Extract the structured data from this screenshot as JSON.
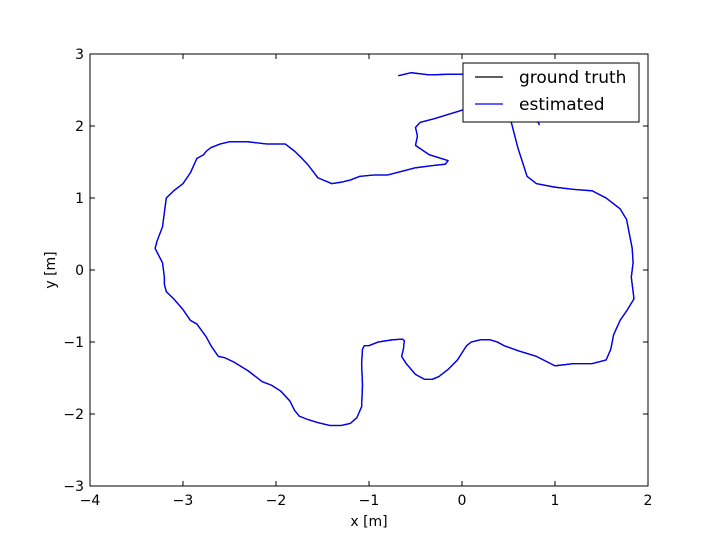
{
  "chart_data": {
    "type": "line",
    "title": "",
    "xlabel": "x [m]",
    "ylabel": "y [m]",
    "xlim": [
      -4,
      2
    ],
    "ylim": [
      -3,
      3
    ],
    "xticks": [
      -4,
      -3,
      -2,
      -1,
      0,
      1,
      2
    ],
    "yticks": [
      -3,
      -2,
      -1,
      0,
      1,
      2,
      3
    ],
    "xtick_labels": [
      "−4",
      "−3",
      "−2",
      "−1",
      "0",
      "1",
      "2"
    ],
    "ytick_labels": [
      "−3",
      "−2",
      "−1",
      "0",
      "1",
      "2",
      "3"
    ],
    "grid": false,
    "legend_position": "top-right",
    "series": [
      {
        "name": "ground truth",
        "color": "#000000",
        "x": [
          -0.68,
          -0.55,
          -0.35,
          -0.12,
          0.05,
          0.15,
          0.25,
          0.35,
          0.45,
          0.5,
          0.48,
          0.52,
          0.6,
          0.7,
          0.8,
          1.0,
          1.2,
          1.4,
          1.55,
          1.7,
          1.77,
          1.8,
          1.83,
          1.84,
          1.83,
          1.82,
          1.85,
          1.78,
          1.7,
          1.63,
          1.6,
          1.55,
          1.4,
          1.2,
          1.0,
          0.8,
          0.6,
          0.45,
          0.38,
          0.3,
          0.2,
          0.1,
          0.05,
          0.0,
          -0.05,
          -0.15,
          -0.25,
          -0.32,
          -0.4,
          -0.5,
          -0.6,
          -0.65,
          -0.63,
          -0.62,
          -0.64,
          -0.75,
          -0.9,
          -1.0,
          -1.05,
          -1.07,
          -1.08,
          -1.07,
          -1.08,
          -1.13,
          -1.2,
          -1.3,
          -1.42,
          -1.55,
          -1.65,
          -1.75,
          -1.8,
          -1.85,
          -1.95,
          -2.05,
          -2.15,
          -2.3,
          -2.45,
          -2.55,
          -2.62,
          -2.7,
          -2.75,
          -2.85,
          -2.92,
          -3.0,
          -3.1,
          -3.18,
          -3.2,
          -3.2,
          -3.22,
          -3.3,
          -3.28,
          -3.22,
          -3.2,
          -3.18,
          -3.1,
          -3.0,
          -2.92,
          -2.85,
          -2.78,
          -2.75,
          -2.7,
          -2.6,
          -2.5,
          -2.3,
          -2.1,
          -1.9,
          -1.8,
          -1.72,
          -1.65,
          -1.55,
          -1.4,
          -1.3,
          -1.2,
          -1.1,
          -0.95,
          -0.8,
          -0.65,
          -0.5,
          -0.32,
          -0.18,
          -0.15,
          -0.35,
          -0.5,
          -0.48,
          -0.5,
          -0.45,
          -0.3,
          -0.05,
          0.1,
          0.25,
          0.35,
          0.45,
          0.55,
          0.65,
          0.75,
          0.82,
          0.83
        ],
        "y": [
          2.7,
          2.74,
          2.71,
          2.72,
          2.72,
          2.75,
          2.78,
          2.8,
          2.76,
          2.6,
          2.4,
          2.1,
          1.7,
          1.3,
          1.2,
          1.15,
          1.12,
          1.1,
          1.0,
          0.85,
          0.7,
          0.5,
          0.3,
          0.1,
          0.0,
          -0.1,
          -0.4,
          -0.55,
          -0.7,
          -0.9,
          -1.1,
          -1.25,
          -1.3,
          -1.3,
          -1.33,
          -1.2,
          -1.12,
          -1.05,
          -1.0,
          -0.97,
          -0.97,
          -1.0,
          -1.05,
          -1.15,
          -1.25,
          -1.38,
          -1.48,
          -1.52,
          -1.52,
          -1.45,
          -1.3,
          -1.2,
          -1.1,
          -0.98,
          -0.96,
          -0.97,
          -1.0,
          -1.05,
          -1.05,
          -1.1,
          -1.3,
          -1.6,
          -1.9,
          -2.05,
          -2.13,
          -2.16,
          -2.16,
          -2.12,
          -2.08,
          -2.03,
          -1.95,
          -1.82,
          -1.68,
          -1.6,
          -1.55,
          -1.4,
          -1.28,
          -1.22,
          -1.2,
          -1.05,
          -0.93,
          -0.75,
          -0.7,
          -0.55,
          -0.4,
          -0.3,
          -0.2,
          -0.1,
          0.1,
          0.3,
          0.4,
          0.6,
          0.8,
          1.0,
          1.1,
          1.2,
          1.35,
          1.55,
          1.6,
          1.65,
          1.7,
          1.75,
          1.78,
          1.78,
          1.75,
          1.75,
          1.65,
          1.55,
          1.45,
          1.28,
          1.2,
          1.22,
          1.25,
          1.3,
          1.32,
          1.32,
          1.37,
          1.42,
          1.45,
          1.47,
          1.52,
          1.6,
          1.73,
          1.86,
          1.98,
          2.05,
          2.1,
          2.2,
          2.26,
          2.26,
          2.22,
          2.18,
          2.12,
          2.1,
          2.08,
          2.05,
          2.02
        ]
      },
      {
        "name": "estimated",
        "color": "#0000ff",
        "x": [
          -0.68,
          -0.55,
          -0.35,
          -0.12,
          0.05,
          0.15,
          0.25,
          0.35,
          0.45,
          0.5,
          0.48,
          0.52,
          0.6,
          0.7,
          0.8,
          1.0,
          1.2,
          1.4,
          1.55,
          1.7,
          1.77,
          1.8,
          1.83,
          1.84,
          1.83,
          1.82,
          1.85,
          1.78,
          1.7,
          1.63,
          1.6,
          1.55,
          1.4,
          1.2,
          1.0,
          0.8,
          0.6,
          0.45,
          0.38,
          0.3,
          0.2,
          0.1,
          0.05,
          0.0,
          -0.05,
          -0.15,
          -0.25,
          -0.32,
          -0.4,
          -0.5,
          -0.6,
          -0.65,
          -0.63,
          -0.62,
          -0.64,
          -0.75,
          -0.9,
          -1.0,
          -1.05,
          -1.07,
          -1.08,
          -1.07,
          -1.08,
          -1.13,
          -1.2,
          -1.3,
          -1.42,
          -1.55,
          -1.65,
          -1.75,
          -1.8,
          -1.85,
          -1.95,
          -2.05,
          -2.15,
          -2.3,
          -2.45,
          -2.55,
          -2.62,
          -2.7,
          -2.75,
          -2.85,
          -2.92,
          -3.0,
          -3.1,
          -3.18,
          -3.2,
          -3.2,
          -3.22,
          -3.3,
          -3.28,
          -3.22,
          -3.2,
          -3.18,
          -3.1,
          -3.0,
          -2.92,
          -2.85,
          -2.78,
          -2.75,
          -2.7,
          -2.6,
          -2.5,
          -2.3,
          -2.1,
          -1.9,
          -1.8,
          -1.72,
          -1.65,
          -1.55,
          -1.4,
          -1.3,
          -1.2,
          -1.1,
          -0.95,
          -0.8,
          -0.65,
          -0.5,
          -0.32,
          -0.18,
          -0.15,
          -0.35,
          -0.5,
          -0.48,
          -0.5,
          -0.45,
          -0.3,
          -0.05,
          0.1,
          0.25,
          0.35,
          0.45,
          0.55,
          0.65,
          0.75,
          0.82,
          0.83
        ],
        "y": [
          2.7,
          2.74,
          2.71,
          2.72,
          2.72,
          2.75,
          2.78,
          2.8,
          2.76,
          2.6,
          2.4,
          2.1,
          1.7,
          1.3,
          1.2,
          1.15,
          1.12,
          1.1,
          1.0,
          0.85,
          0.7,
          0.5,
          0.3,
          0.1,
          0.0,
          -0.1,
          -0.4,
          -0.55,
          -0.7,
          -0.9,
          -1.1,
          -1.25,
          -1.3,
          -1.3,
          -1.33,
          -1.2,
          -1.12,
          -1.05,
          -1.0,
          -0.97,
          -0.97,
          -1.0,
          -1.05,
          -1.15,
          -1.25,
          -1.38,
          -1.48,
          -1.52,
          -1.52,
          -1.45,
          -1.3,
          -1.2,
          -1.1,
          -0.98,
          -0.96,
          -0.97,
          -1.0,
          -1.05,
          -1.05,
          -1.1,
          -1.3,
          -1.6,
          -1.9,
          -2.05,
          -2.13,
          -2.16,
          -2.16,
          -2.12,
          -2.08,
          -2.03,
          -1.95,
          -1.82,
          -1.68,
          -1.6,
          -1.55,
          -1.4,
          -1.28,
          -1.22,
          -1.2,
          -1.05,
          -0.93,
          -0.75,
          -0.7,
          -0.55,
          -0.4,
          -0.3,
          -0.2,
          -0.1,
          0.1,
          0.3,
          0.4,
          0.6,
          0.8,
          1.0,
          1.1,
          1.2,
          1.35,
          1.55,
          1.6,
          1.65,
          1.7,
          1.75,
          1.78,
          1.78,
          1.75,
          1.75,
          1.65,
          1.55,
          1.45,
          1.28,
          1.2,
          1.22,
          1.25,
          1.3,
          1.32,
          1.32,
          1.37,
          1.42,
          1.45,
          1.47,
          1.52,
          1.6,
          1.73,
          1.86,
          1.98,
          2.05,
          2.1,
          2.2,
          2.26,
          2.26,
          2.22,
          2.18,
          2.12,
          2.1,
          2.08,
          2.05,
          2.02
        ]
      }
    ]
  }
}
